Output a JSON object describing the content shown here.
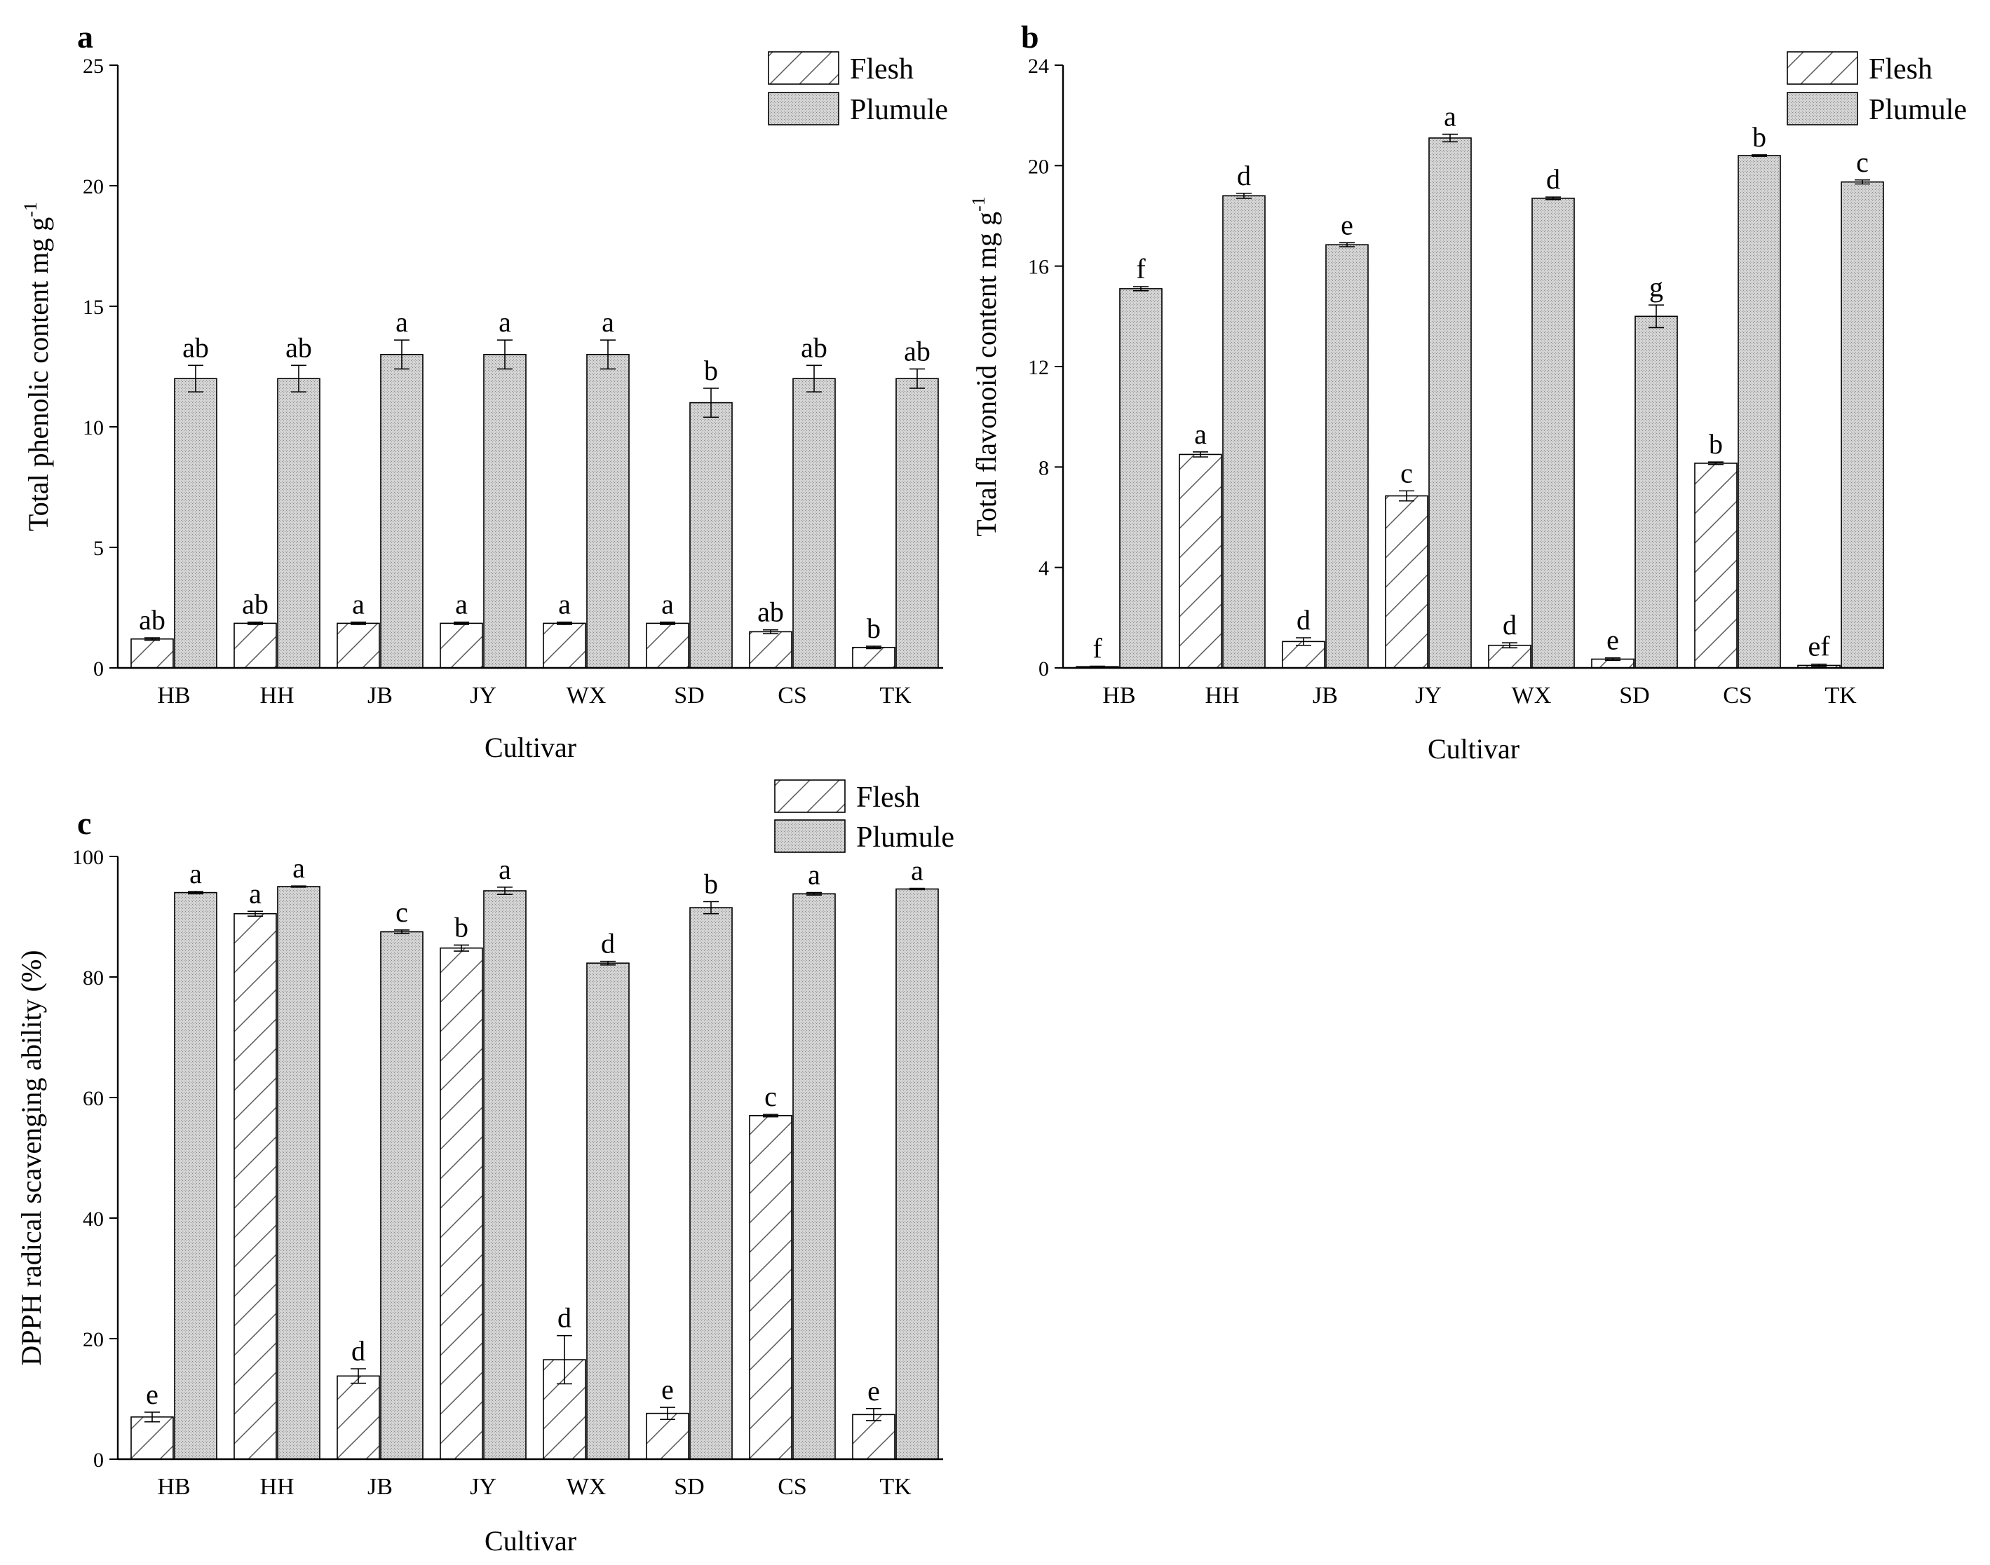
{
  "figure": {
    "legend": {
      "flesh": "Flesh",
      "plumule": "Plumule"
    },
    "colors": {
      "axis": "#000000",
      "flesh_fill": "#ffffff",
      "plumule_fill": "#d0d0d0",
      "hatch": "#555555"
    }
  },
  "chart_data": [
    {
      "type": "bar",
      "panel": "a",
      "xlabel": "Cultivar",
      "ylabel": "Total phenolic content mg g",
      "ylabel_sup": "-1",
      "ylim": [
        0,
        25
      ],
      "yticks": [
        "0",
        "5",
        "10",
        "15",
        "20",
        "25"
      ],
      "categories": [
        "HB",
        "HH",
        "JB",
        "JY",
        "WX",
        "SD",
        "CS",
        "TK"
      ],
      "series": [
        {
          "name": "Flesh",
          "values": [
            1.2,
            1.85,
            1.85,
            1.85,
            1.85,
            1.85,
            1.5,
            0.85
          ],
          "errors": [
            0.05,
            0.05,
            0.05,
            0.05,
            0.05,
            0.05,
            0.08,
            0.05
          ],
          "labels": [
            "ab",
            "ab",
            "a",
            "a",
            "a",
            "a",
            "ab",
            "b"
          ]
        },
        {
          "name": "Plumule",
          "values": [
            12,
            12,
            13,
            13,
            13,
            11,
            12,
            12
          ],
          "errors": [
            0.55,
            0.55,
            0.6,
            0.6,
            0.6,
            0.6,
            0.55,
            0.4
          ],
          "labels": [
            "ab",
            "ab",
            "a",
            "a",
            "a",
            "b",
            "ab",
            "ab"
          ]
        }
      ]
    },
    {
      "type": "bar",
      "panel": "b",
      "xlabel": "Cultivar",
      "ylabel": "Total flavonoid content mg g",
      "ylabel_sup": "-1",
      "ylim": [
        0,
        24
      ],
      "yticks": [
        "0",
        "4",
        "8",
        "12",
        "16",
        "20",
        "24"
      ],
      "categories": [
        "HB",
        "HH",
        "JB",
        "JY",
        "WX",
        "SD",
        "CS",
        "TK"
      ],
      "series": [
        {
          "name": "Flesh",
          "values": [
            0.05,
            8.5,
            1.05,
            6.85,
            0.9,
            0.35,
            8.15,
            0.1
          ],
          "errors": [
            0.02,
            0.1,
            0.15,
            0.2,
            0.1,
            0.05,
            0.05,
            0.05
          ],
          "labels": [
            "f",
            "a",
            "d",
            "c",
            "d",
            "e",
            "b",
            "ef"
          ]
        },
        {
          "name": "Plumule",
          "values": [
            15.1,
            18.8,
            16.85,
            21.1,
            18.7,
            14.0,
            20.4,
            19.35
          ],
          "errors": [
            0.08,
            0.1,
            0.08,
            0.15,
            0.05,
            0.45,
            0.03,
            0.08
          ],
          "labels": [
            "f",
            "d",
            "e",
            "a",
            "d",
            "g",
            "b",
            "c"
          ]
        }
      ]
    },
    {
      "type": "bar",
      "panel": "c",
      "xlabel": "Cultivar",
      "ylabel": "DPPH radical scavenging ability (%)",
      "ylabel_sup": "",
      "ylim": [
        0,
        100
      ],
      "yticks": [
        "0",
        "20",
        "40",
        "60",
        "80",
        "100"
      ],
      "categories": [
        "HB",
        "HH",
        "JB",
        "JY",
        "WX",
        "SD",
        "CS",
        "TK"
      ],
      "series": [
        {
          "name": "Flesh",
          "values": [
            7,
            90.5,
            13.8,
            84.8,
            16.5,
            7.6,
            57,
            7.4
          ],
          "errors": [
            0.8,
            0.4,
            1.2,
            0.5,
            4.0,
            1.0,
            0.2,
            1.0
          ],
          "labels": [
            "e",
            "a",
            "d",
            "b",
            "d",
            "e",
            "c",
            "e"
          ]
        },
        {
          "name": "Plumule",
          "values": [
            94,
            95,
            87.5,
            94.3,
            82.3,
            91.5,
            93.8,
            94.6
          ],
          "errors": [
            0.2,
            0.1,
            0.3,
            0.6,
            0.3,
            1.0,
            0.2,
            0.1
          ],
          "labels": [
            "a",
            "a",
            "c",
            "a",
            "d",
            "b",
            "a",
            "a"
          ]
        }
      ]
    }
  ]
}
